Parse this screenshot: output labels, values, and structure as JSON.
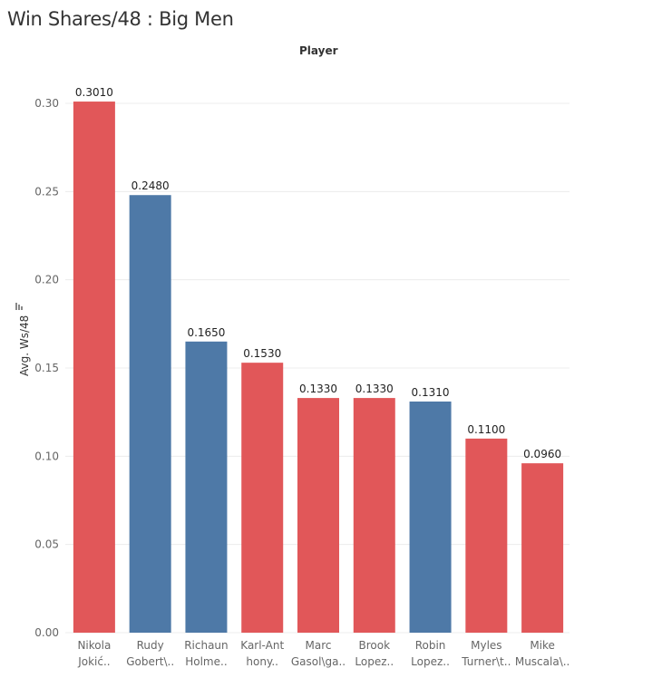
{
  "title": "Win Shares/48 : Big Men",
  "column_header": "Player",
  "y_axis_label": "Avg. Ws/48",
  "colors": {
    "red": "#E15759",
    "blue": "#4E79A7",
    "grid": "#ececec"
  },
  "chart_data": {
    "type": "bar",
    "title": "Win Shares/48 : Big Men",
    "xlabel": "Player",
    "ylabel": "Avg. Ws/48",
    "ylim": [
      0,
      0.3
    ],
    "yticks": [
      "0.00",
      "0.05",
      "0.10",
      "0.15",
      "0.20",
      "0.25",
      "0.30"
    ],
    "grid": true,
    "categories": [
      [
        "Nikola",
        "Jokić.."
      ],
      [
        "Rudy",
        "Gobert\\.."
      ],
      [
        "Richaun",
        "Holme.."
      ],
      [
        "Karl-Ant",
        "hony.."
      ],
      [
        "Marc",
        "Gasol\\ga.."
      ],
      [
        "Brook",
        "Lopez.."
      ],
      [
        "Robin",
        "Lopez.."
      ],
      [
        "Myles",
        "Turner\\t.."
      ],
      [
        "Mike",
        "Muscala\\.."
      ]
    ],
    "values": [
      0.301,
      0.248,
      0.165,
      0.153,
      0.133,
      0.133,
      0.131,
      0.11,
      0.096
    ],
    "labels": [
      "0.3010",
      "0.2480",
      "0.1650",
      "0.1530",
      "0.1330",
      "0.1330",
      "0.1310",
      "0.1100",
      "0.0960"
    ],
    "bar_colors": [
      "red",
      "blue",
      "blue",
      "red",
      "red",
      "red",
      "blue",
      "red",
      "red"
    ]
  }
}
